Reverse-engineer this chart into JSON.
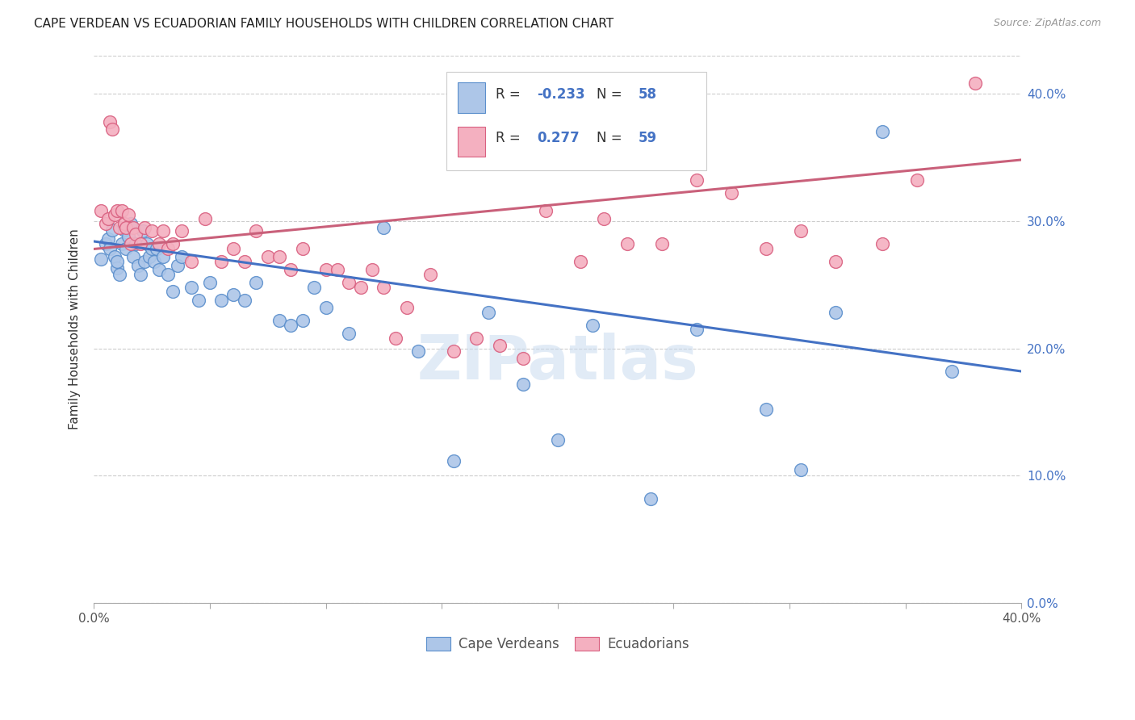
{
  "title": "CAPE VERDEAN VS ECUADORIAN FAMILY HOUSEHOLDS WITH CHILDREN CORRELATION CHART",
  "source": "Source: ZipAtlas.com",
  "ylabel": "Family Households with Children",
  "xlim": [
    0.0,
    0.4
  ],
  "ylim": [
    0.0,
    0.43
  ],
  "yticks": [
    0.0,
    0.1,
    0.2,
    0.3,
    0.4
  ],
  "xticks": [
    0.0,
    0.05,
    0.1,
    0.15,
    0.2,
    0.25,
    0.3,
    0.35,
    0.4
  ],
  "watermark": "ZIPatlas",
  "legend_labels": [
    "Cape Verdeans",
    "Ecuadorians"
  ],
  "blue_R": -0.233,
  "blue_N": 58,
  "pink_R": 0.277,
  "pink_N": 59,
  "blue_color": "#adc6e8",
  "pink_color": "#f4b0c0",
  "blue_edge_color": "#5b8fcc",
  "pink_edge_color": "#d96080",
  "blue_line_color": "#4472c4",
  "pink_line_color": "#c9607a",
  "blue_line_start_y": 0.284,
  "blue_line_end_y": 0.182,
  "pink_line_start_y": 0.278,
  "pink_line_end_y": 0.348,
  "blue_x": [
    0.003,
    0.005,
    0.006,
    0.007,
    0.008,
    0.009,
    0.01,
    0.01,
    0.011,
    0.012,
    0.013,
    0.014,
    0.015,
    0.016,
    0.017,
    0.018,
    0.019,
    0.02,
    0.021,
    0.022,
    0.023,
    0.024,
    0.025,
    0.026,
    0.027,
    0.028,
    0.03,
    0.032,
    0.034,
    0.036,
    0.038,
    0.042,
    0.045,
    0.05,
    0.055,
    0.06,
    0.065,
    0.07,
    0.08,
    0.085,
    0.09,
    0.095,
    0.1,
    0.11,
    0.125,
    0.14,
    0.155,
    0.17,
    0.185,
    0.2,
    0.215,
    0.24,
    0.26,
    0.29,
    0.305,
    0.32,
    0.34,
    0.37
  ],
  "blue_y": [
    0.27,
    0.282,
    0.286,
    0.278,
    0.293,
    0.272,
    0.263,
    0.268,
    0.258,
    0.282,
    0.293,
    0.278,
    0.288,
    0.298,
    0.272,
    0.282,
    0.265,
    0.258,
    0.292,
    0.268,
    0.282,
    0.272,
    0.278,
    0.268,
    0.278,
    0.262,
    0.272,
    0.258,
    0.245,
    0.265,
    0.272,
    0.248,
    0.238,
    0.252,
    0.238,
    0.242,
    0.238,
    0.252,
    0.222,
    0.218,
    0.222,
    0.248,
    0.232,
    0.212,
    0.295,
    0.198,
    0.112,
    0.228,
    0.172,
    0.128,
    0.218,
    0.082,
    0.215,
    0.152,
    0.105,
    0.228,
    0.37,
    0.182
  ],
  "pink_x": [
    0.003,
    0.005,
    0.006,
    0.007,
    0.008,
    0.009,
    0.01,
    0.011,
    0.012,
    0.013,
    0.014,
    0.015,
    0.016,
    0.017,
    0.018,
    0.02,
    0.022,
    0.025,
    0.028,
    0.03,
    0.032,
    0.034,
    0.038,
    0.042,
    0.048,
    0.055,
    0.06,
    0.065,
    0.07,
    0.075,
    0.08,
    0.085,
    0.09,
    0.1,
    0.105,
    0.11,
    0.115,
    0.12,
    0.125,
    0.13,
    0.135,
    0.145,
    0.155,
    0.165,
    0.175,
    0.185,
    0.195,
    0.21,
    0.22,
    0.23,
    0.245,
    0.26,
    0.275,
    0.29,
    0.305,
    0.32,
    0.34,
    0.355,
    0.38
  ],
  "pink_y": [
    0.308,
    0.298,
    0.302,
    0.378,
    0.372,
    0.305,
    0.308,
    0.295,
    0.308,
    0.298,
    0.295,
    0.305,
    0.282,
    0.295,
    0.29,
    0.282,
    0.295,
    0.292,
    0.282,
    0.292,
    0.278,
    0.282,
    0.292,
    0.268,
    0.302,
    0.268,
    0.278,
    0.268,
    0.292,
    0.272,
    0.272,
    0.262,
    0.278,
    0.262,
    0.262,
    0.252,
    0.248,
    0.262,
    0.248,
    0.208,
    0.232,
    0.258,
    0.198,
    0.208,
    0.202,
    0.192,
    0.308,
    0.268,
    0.302,
    0.282,
    0.282,
    0.332,
    0.322,
    0.278,
    0.292,
    0.268,
    0.282,
    0.332,
    0.408
  ]
}
